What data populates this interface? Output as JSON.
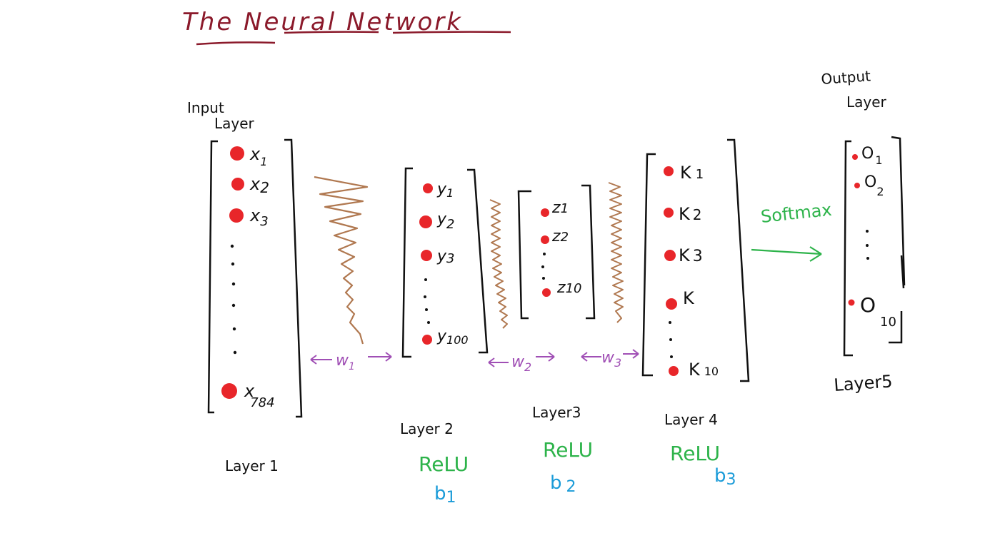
{
  "title": "The Neural Network",
  "colors": {
    "title": "#8b1a2b",
    "ink": "#111111",
    "node": "#e8262a",
    "weights_zigzag": "#b07850",
    "weights_label": "#a04fb5",
    "activation": "#2db34a",
    "bias": "#1a9bd8"
  },
  "layer1": {
    "caption_top_line1": "Input",
    "caption_top_line2": "Layer",
    "caption_bottom": "Layer 1",
    "nodes": [
      {
        "base": "x",
        "sub": "1"
      },
      {
        "base": "x",
        "sub": "2"
      },
      {
        "base": "x",
        "sub": "3"
      },
      {
        "base": "x",
        "sub": "784"
      }
    ]
  },
  "layer2": {
    "caption": "Layer 2",
    "activation": "ReLU",
    "bias": {
      "base": "b",
      "sub": "1"
    },
    "nodes": [
      {
        "base": "y",
        "sub": "1"
      },
      {
        "base": "y",
        "sub": "2"
      },
      {
        "base": "y",
        "sub": "3"
      },
      {
        "base": "y",
        "sub": "100"
      }
    ]
  },
  "layer3": {
    "caption": "Layer3",
    "activation": "ReLU",
    "bias": {
      "base": "b",
      "sub": "2"
    },
    "nodes": [
      {
        "base": "z",
        "sub": "1"
      },
      {
        "base": "z",
        "sub": "2"
      },
      {
        "base": "z",
        "sub": "10"
      }
    ]
  },
  "layer4": {
    "caption": "Layer 4",
    "activation": "ReLU",
    "bias": {
      "base": "b",
      "sub": "3"
    },
    "nodes": [
      {
        "base": "K",
        "sub": "1"
      },
      {
        "base": "K",
        "sub": "2"
      },
      {
        "base": "K",
        "sub": "3"
      },
      {
        "base": "K",
        "sub": ""
      },
      {
        "base": "K",
        "sub": "10"
      }
    ]
  },
  "layer5": {
    "caption_top_line1": "Output",
    "caption_top_line2": "Layer",
    "caption_bottom": "Layer5",
    "nodes": [
      {
        "base": "O",
        "sub": "1"
      },
      {
        "base": "O",
        "sub": "2"
      },
      {
        "base": "O",
        "sub": "10"
      }
    ]
  },
  "weights": [
    {
      "base": "w",
      "sub": "1"
    },
    {
      "base": "w",
      "sub": "2"
    },
    {
      "base": "w",
      "sub": "3"
    }
  ],
  "softmax_label": "Softmax"
}
